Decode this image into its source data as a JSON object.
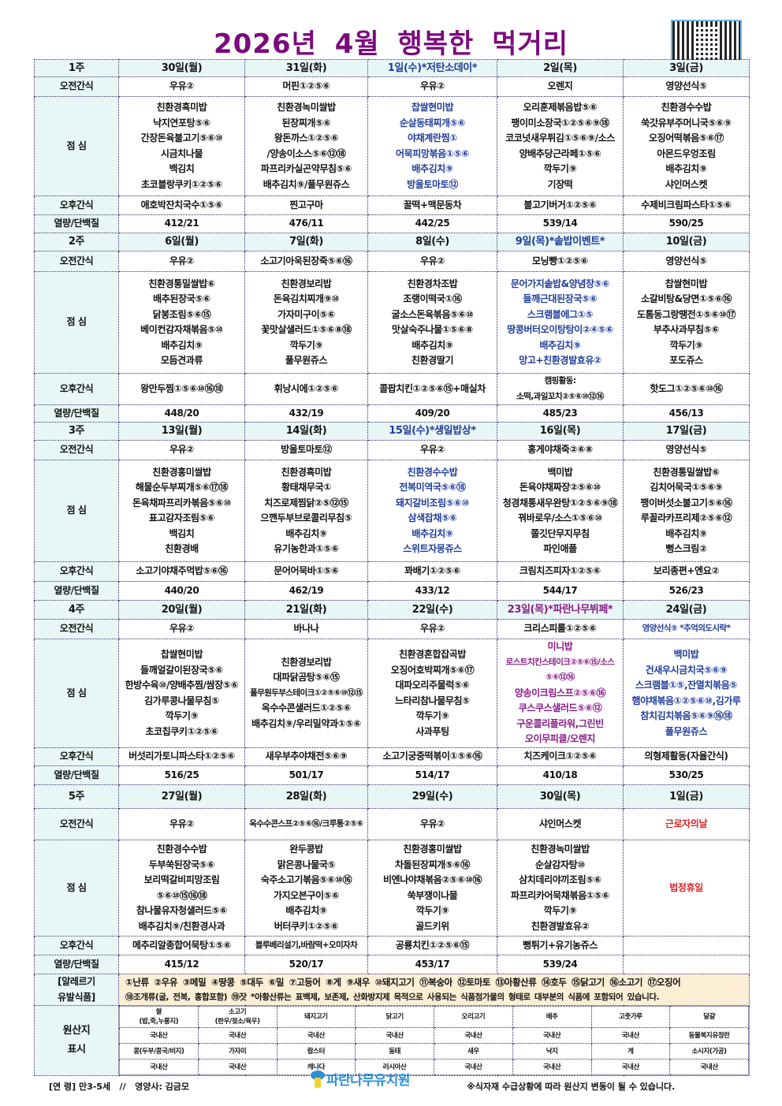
{
  "title": "2026년 4월 행복한 먹거리",
  "row_labels": {
    "am": "오전간식",
    "lunch": "점      심",
    "pm": "오후간식",
    "kcal": "열량/단백질"
  },
  "weeks": [
    {
      "label": "1주",
      "days": [
        {
          "date": "30일(월)",
          "am": "우유②",
          "lunch": [
            "친환경흑미밥",
            "낙지연포탕⑤⑥",
            "간장돈육불고기⑤⑥⑩",
            "시금치나물",
            "백김치",
            "초코블랑쿠키①②⑤⑥"
          ],
          "pm": "애호박잔치국수①⑤⑥",
          "kcal": "412/21"
        },
        {
          "date": "31일(화)",
          "am": "머핀①②⑤⑥",
          "lunch": [
            "친환경녹미쌀밥",
            "된장찌개⑤⑥",
            "왕돈까스①②⑤⑥",
            "/양송이소스⑤⑥⑫⑱",
            "파프리카실곤약무침⑤⑥",
            "배추김치⑨/풀무원쥬스"
          ],
          "pm": "찐고구마",
          "kcal": "476/11"
        },
        {
          "date": "1일(수)*저탄소데이*",
          "date_color": "blue",
          "am": "우유②",
          "lunch_color": "blue",
          "lunch": [
            "찹쌀현미밥",
            "순살동태찌개⑤⑥",
            "야채계란찜①",
            "어묵피망볶음①⑤⑥",
            "배추김치⑨",
            "방울토마토⑫"
          ],
          "pm": "꿀떡+맥문동차",
          "kcal": "442/25"
        },
        {
          "date": "2일(목)",
          "am": "오렌지",
          "lunch": [
            "오리훈제볶음밥⑤⑥",
            "팽이미소장국①②⑤⑥⑨⑱",
            "코코넛새우튀김①⑤⑥⑨/소스",
            "양배추당근라페①⑤⑥",
            "깍두기⑨",
            "기장떡"
          ],
          "pm": "불고기버거①②⑤⑥",
          "kcal": "539/14"
        },
        {
          "date": "3일(금)",
          "am": "영양선식⑤",
          "lunch": [
            "친환경수수밥",
            "쑥갓유부주머니국⑤⑥⑨",
            "오징어떡볶음⑤⑥⑰",
            "아몬드우엉조림",
            "배추김치⑨",
            "샤인머스켓"
          ],
          "pm": "수제비크림파스타①⑤⑥",
          "kcal": "590/25"
        }
      ]
    },
    {
      "label": "2주",
      "days": [
        {
          "date": "6일(월)",
          "am": "우유②",
          "lunch": [
            "친환경통밀쌀밥⑥",
            "배추된장국⑤⑥",
            "닭봉조림⑤⑥⑮",
            "베이컨감자채볶음⑤⑩",
            "배추김치⑨",
            "모듬견과류"
          ],
          "pm": "왕만두찜①⑤⑥⑩⑯⑱",
          "kcal": "448/20"
        },
        {
          "date": "7일(화)",
          "am": "소고기아욱된장죽⑤⑥⑯",
          "lunch": [
            "친환경보리밥",
            "돈육김치찌개⑨⑩",
            "가자미구이⑤⑥",
            "꽃맛살샐러드①⑤⑥⑧⑱",
            "깍두기⑨",
            "풀무원쥬스"
          ],
          "pm": "휘낭시에①②⑤⑥",
          "kcal": "432/19"
        },
        {
          "date": "8일(수)",
          "am": "우유②",
          "lunch": [
            "친환경차조밥",
            "조랭이떡국①⑯",
            "굴소스돈육볶음⑤⑥⑩",
            "맛살숙주나물①⑤⑥⑧",
            "배추김치⑨",
            "친환경딸기"
          ],
          "pm": "콜팝치킨①②⑤⑥⑮+매실차",
          "kcal": "409/20"
        },
        {
          "date": "9일(목)*솥밥이벤트*",
          "date_color": "blue",
          "am": "모닝빵①②⑤⑥",
          "lunch_color": "blue",
          "lunch": [
            "문어가지솥밥&양념장⑤⑥",
            "들깨근대된장국⑤⑥",
            "스크램블에그①⑤",
            "땅콩버터오이탕탕이②④⑤⑥",
            "배추김치⑨",
            "망고+친환경발효유②"
          ],
          "pm": "캠핑활동:\n소떡,과일꼬치②⑤⑥⑩⑫⑯",
          "kcal": "485/23"
        },
        {
          "date": "10일(금)",
          "am": "영양선식⑤",
          "lunch": [
            "찹쌀현미밥",
            "소갈비탕&당면①⑤⑥⑯",
            "도톰동그랑땡전①⑤⑥⑩⑰",
            "부추사과무침⑤⑥",
            "깍두기⑨",
            "포도쥬스"
          ],
          "pm": "핫도그①②⑤⑥⑩⑯",
          "kcal": "456/13"
        }
      ]
    },
    {
      "label": "3주",
      "days": [
        {
          "date": "13일(월)",
          "am": "우유②",
          "lunch": [
            "친환경홍미쌀밥",
            "해물순두부찌개⑤⑥⑰⑱",
            "돈육채파프리카볶음⑤⑥⑩",
            "표고감자조림⑤⑥",
            "백김치",
            "친환경배"
          ],
          "pm": "소고기야채주먹밥⑤⑥⑯",
          "kcal": "440/20"
        },
        {
          "date": "14일(화)",
          "am": "방울토마토⑫",
          "lunch": [
            "친환경흑미밥",
            "황태채무국①",
            "치즈로제찜닭②⑤⑫⑮",
            "으깬두부브로콜리무침⑤",
            "배추김치⑨",
            "유기농한과①⑤⑥"
          ],
          "pm": "문어어묵바①⑤⑥",
          "kcal": "462/19"
        },
        {
          "date": "15일(수)*생일밥상*",
          "date_color": "blue",
          "am": "우유②",
          "lunch_color": "blue",
          "lunch": [
            "친환경수수밥",
            "전복미역국⑤⑥⑱",
            "돼지갈비조림⑤⑥⑩",
            "삼색잡채⑤⑥",
            "배추김치⑨",
            "스위트자몽쥬스"
          ],
          "pm": "꽈배기①②⑤⑥",
          "kcal": "433/12"
        },
        {
          "date": "16일(목)",
          "am": "홍게야채죽②⑥⑧",
          "lunch": [
            "백미밥",
            "돈육야채짜장②⑤⑥⑩",
            "청경채통새우완탕①②⑤⑥⑨⑱",
            "꿔바로우/소스①⑤⑥⑩",
            "쫄깃단무지무침",
            "파인애플"
          ],
          "pm": "크림치즈피자①②⑤⑥",
          "kcal": "544/17"
        },
        {
          "date": "17일(금)",
          "am": "영양선식⑤",
          "lunch": [
            "친환경통밀쌀밥⑥",
            "김치어묵국①⑤⑥⑨",
            "팽이버섯소불고기⑤⑥⑯",
            "루꼴라카프리제②⑤⑥⑫",
            "배추김치⑨",
            "뻥스크림②"
          ],
          "pm": "보리종편+엔요②",
          "kcal": "526/23"
        }
      ]
    },
    {
      "label": "4주",
      "days": [
        {
          "date": "20일(월)",
          "am": "우유②",
          "lunch": [
            "찹쌀현미밥",
            "들깨얼갈이된장국⑤⑥",
            "한방수육⑩/양배추찜/쌈장⑤⑥",
            "김가루콩나물무침⑤",
            "깍두기⑨",
            "초코칩쿠키①②⑤⑥"
          ],
          "pm": "버섯리가토니파스타①②⑤⑥",
          "kcal": "516/25"
        },
        {
          "date": "21일(화)",
          "am": "바나나",
          "lunch": [
            "친환경보리밥",
            "대파닭곰탕⑤⑥⑮",
            "풀무원두부스테이크①②⑤⑥⑩⑫⑮",
            "옥수수콘샐러드①②⑤⑥",
            "배추김치⑨/우리밀약과①⑤⑥"
          ],
          "pm": "새우부추야채전⑤⑥⑨",
          "kcal": "501/17"
        },
        {
          "date": "22일(수)",
          "am": "우유②",
          "lunch": [
            "친환경혼합잡곡밥",
            "오징어호박찌개⑤⑥⑰",
            "대파오리주물럭⑤⑥",
            "느타리참나물무침⑤",
            "깍두기⑨",
            "사과푸팅"
          ],
          "pm": "소고기궁중떡볶이①⑤⑥⑯",
          "kcal": "514/17"
        },
        {
          "date": "23일(목)*파란나무뷔페*",
          "date_color": "purple",
          "am": "크리스피롤①②⑤⑥",
          "lunch_color": "purple",
          "lunch": [
            "미니밥",
            "로스트치킨스테이크②⑤⑥⑮/소스⑤⑥⑫⑯",
            "양송이크림스프②⑤⑥⑯",
            "쿠스쿠스샐러드⑤⑥⑫",
            "구운콜리플라워,그린빈",
            "오이무피클/오렌지"
          ],
          "pm": "치즈케이크①②⑤⑥",
          "kcal": "410/18"
        },
        {
          "date": "24일(금)",
          "am": "영양선식⑤  *추억의도시락*",
          "am_color": "blue",
          "lunch_color": "blue",
          "lunch": [
            "백미밥",
            "건새우시금치국⑤⑥⑨",
            "스크램블①⑤,잔멸치볶음⑤",
            "햄야채볶음①②⑤⑥⑩,김가루",
            "참치김치볶음⑤⑥⑨⑯⑱",
            "풀무원쥬스"
          ],
          "pm": "의형제활동(자율간식)",
          "kcal": "530/25"
        }
      ]
    },
    {
      "label": "5주",
      "days": [
        {
          "date": "27일(월)",
          "am": "우유②",
          "lunch": [
            "친환경수수밥",
            "두부쑥된장국⑤⑥",
            "보리떡갈비피망조림⑤⑥⑩⑮⑯⑱",
            "참나물유자청샐러드⑤⑥",
            "배추김치⑨/친환경사과"
          ],
          "pm": "메추리알종합어묵탕①⑤⑥",
          "kcal": "415/12"
        },
        {
          "date": "28일(화)",
          "am": "옥수수콘스프②⑤⑥⑯/크루통②⑤⑥",
          "lunch": [
            "완두콩밥",
            "맑은콩나물국⑤",
            "숙주소고기볶음⑤⑥⑩⑯",
            "가지오븐구이⑤⑥",
            "배추김치⑨",
            "버터쿠키①②⑤⑥"
          ],
          "pm": "블루베리설기,바람떡+오미자차",
          "kcal": "520/17"
        },
        {
          "date": "29일(수)",
          "am": "우유②",
          "lunch": [
            "친환경홍미쌀밥",
            "차돌된장찌개⑤⑥⑯",
            "비엔나야채볶음②⑤⑥⑩⑯",
            "쑥부쟁이나물",
            "깍두기⑨",
            "골드키위"
          ],
          "pm": "공룡치킨①②⑤⑥⑮",
          "kcal": "453/17"
        },
        {
          "date": "30일(목)",
          "am": "샤인머스켓",
          "lunch": [
            "친환경녹미쌀밥",
            "순살감자탕⑩",
            "삼치데리야끼조림⑤⑥",
            "파프리카어묵채볶음①⑤⑥",
            "깍두기⑨",
            "친환경발효유②"
          ],
          "pm": "뻥튀기+유기농쥬스",
          "kcal": "539/24"
        },
        {
          "date": "1일(금)",
          "am": "근로자의날",
          "am_color": "red",
          "lunch_color": "red",
          "lunch": [
            "법정휴일"
          ],
          "pm": "",
          "kcal": ""
        }
      ]
    }
  ],
  "allergy": {
    "label": "[알레르기\n유발식품]",
    "line1": "①난류 ②우유 ③메밀 ④땅콩 ⑤대두 ⑥밀 ⑦고등어 ⑧게 ⑨새우 ⑩돼지고기 ⑪복숭아 ⑫토마토 ⑬아황산류 ⑭호두 ⑮닭고기 ⑯소고기 ⑰오징어",
    "line2": "⑱조개류(굴, 전복, 홍합포함) ⑲잣 *아황산류는 표백제, 보존제, 산화방지제 목적으로 사용되는 식품첨가물의 형태로 대부분의 식품에 포함되어 있습니다."
  },
  "origin": {
    "label": "원산지\n표시",
    "rows": [
      [
        "쌀\n(밥,죽,누룽지)",
        "소고기\n(한우/젖소/육우)",
        "돼지고기",
        "닭고기",
        "오리고기",
        "배추",
        "고춧가루",
        "달걀"
      ],
      [
        "국내산",
        "국내산",
        "국내산",
        "국내산",
        "국내산",
        "국내산",
        "국내산",
        "동물복지유정란"
      ],
      [
        "콩(두부/콩국/비지)",
        "가자미",
        "랍스터",
        "동태",
        "새우",
        "낙지",
        "게",
        "소시지(가공)"
      ],
      [
        "국내산",
        "국내산",
        "캐나다",
        "러시아산",
        "국내산",
        "국내산",
        "국내산",
        "국내산"
      ]
    ]
  },
  "footer": {
    "left": "[연 령] 만3-5세   //   영양사: 김금모",
    "logo_text": "파란나무유치원",
    "right": "※식자재 수급상황에 따라 원산지 변동이 될 수 있습니다."
  },
  "colors": {
    "title": "#7b0a7d",
    "blue": "#1f3d9a",
    "purple": "#8a1a88",
    "red": "#e02323",
    "header_bg": "#e8f7f6",
    "allergy_bg": "#fcefd6"
  }
}
